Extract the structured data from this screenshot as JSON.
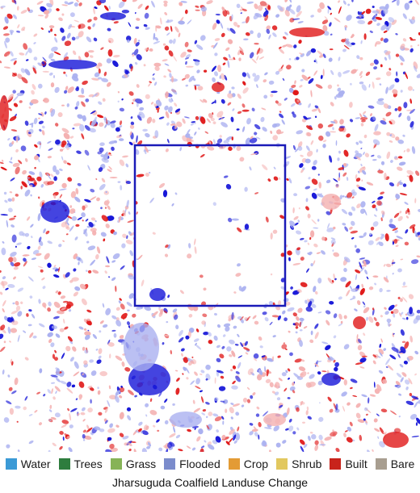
{
  "title": "Jharsuguda Coalfield Landuse Change",
  "legend": [
    {
      "label": "Water",
      "color": "#3b9ad6"
    },
    {
      "label": "Trees",
      "color": "#2e7d3e"
    },
    {
      "label": "Grass",
      "color": "#86b357"
    },
    {
      "label": "Flooded",
      "color": "#7b8ccc"
    },
    {
      "label": "Crop",
      "color": "#e39b35"
    },
    {
      "label": "Shrub",
      "color": "#e2c85f"
    },
    {
      "label": "Built",
      "color": "#c8231b"
    },
    {
      "label": "Bare",
      "color": "#a89e90"
    }
  ],
  "map": {
    "change_colors": {
      "loss_strong": "#1515d8",
      "loss_light": "#aab0f0",
      "gain_strong": "#e01818",
      "gain_light": "#f4b0b0",
      "background": "#ffffff"
    },
    "highlight_box_color": "#1a1ab8"
  }
}
